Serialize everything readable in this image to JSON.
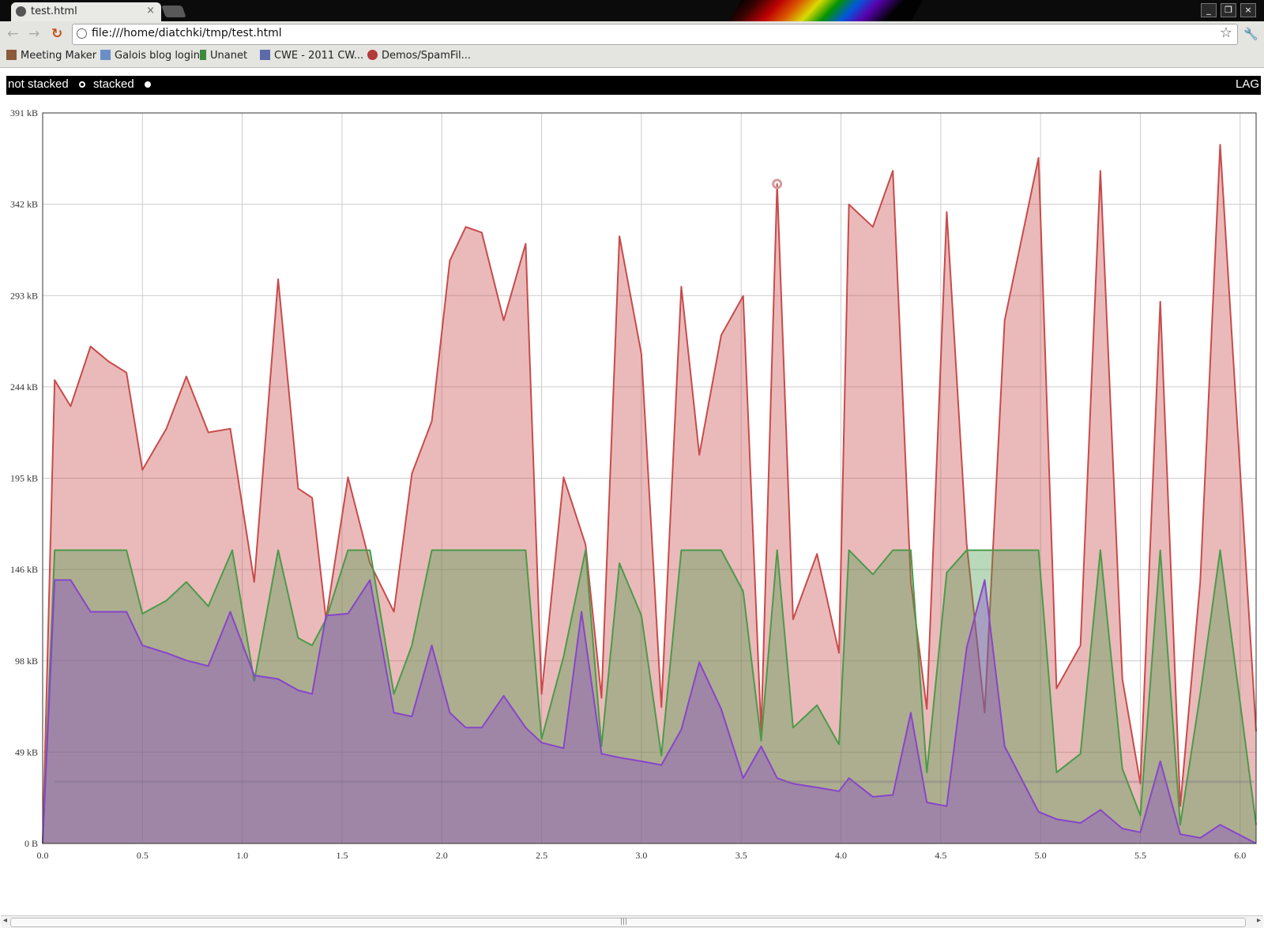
{
  "browser": {
    "tab_title": "test.html",
    "tab_close": "×",
    "address": "file:///home/diatchki/tmp/test.html",
    "window_buttons": [
      "_",
      "❐",
      "×"
    ],
    "nav_back": "←",
    "nav_forward": "→",
    "nav_reload": "↻",
    "star": "☆",
    "wrench": "🔧"
  },
  "bookmarks": [
    {
      "label": "Meeting Maker",
      "icon_color": "#8a5a3a"
    },
    {
      "label": "Galois blog login",
      "icon_color": "#6a8fc7"
    },
    {
      "label": "Unanet",
      "icon_color": "#3c8a3c"
    },
    {
      "label": "CWE - 2011 CW...",
      "icon_color": "#5b6aa8"
    },
    {
      "label": "Demos/SpamFil...",
      "icon_color": "#b33a3a"
    }
  ],
  "controls": {
    "options": [
      {
        "label": "not stacked",
        "selected": false
      },
      {
        "label": "stacked",
        "selected": true
      }
    ],
    "right_label": "LAG"
  },
  "colors": {
    "red": "#c94a4a",
    "green": "#4a9a4a",
    "purple": "#8844cc",
    "grid": "#cccccc"
  },
  "chart_data": {
    "type": "area",
    "stacked": true,
    "xlim": [
      0,
      6.08
    ],
    "ylim": [
      0,
      391
    ],
    "x_ticks": [
      "0.0",
      "0.5",
      "1.0",
      "1.5",
      "2.0",
      "2.5",
      "3.0",
      "3.5",
      "4.0",
      "4.5",
      "5.0",
      "5.5",
      "6.0"
    ],
    "y_ticks": [
      "0 B",
      "49 kB",
      "98 kB",
      "146 kB",
      "195 kB",
      "244 kB",
      "293 kB",
      "342 kB",
      "391 kB"
    ],
    "highlight_point": {
      "x": 3.68,
      "y": 353
    },
    "series": [
      {
        "color": "#c94a4a",
        "points": [
          [
            0,
            0
          ],
          [
            0.06,
            248
          ],
          [
            0.14,
            234
          ],
          [
            0.24,
            266
          ],
          [
            0.33,
            258
          ],
          [
            0.42,
            252
          ],
          [
            0.5,
            200
          ],
          [
            0.62,
            222
          ],
          [
            0.72,
            250
          ],
          [
            0.83,
            220
          ],
          [
            0.94,
            222
          ],
          [
            1.06,
            140
          ],
          [
            1.18,
            302
          ],
          [
            1.28,
            190
          ],
          [
            1.35,
            185
          ],
          [
            1.42,
            120
          ],
          [
            1.53,
            196
          ],
          [
            1.64,
            150
          ],
          [
            1.76,
            124
          ],
          [
            1.85,
            198
          ],
          [
            1.95,
            226
          ],
          [
            2.04,
            312
          ],
          [
            2.12,
            330
          ],
          [
            2.2,
            327
          ],
          [
            2.31,
            280
          ],
          [
            2.42,
            321
          ],
          [
            2.5,
            80
          ],
          [
            2.61,
            196
          ],
          [
            2.72,
            160
          ],
          [
            2.8,
            78
          ],
          [
            2.89,
            325
          ],
          [
            3.0,
            262
          ],
          [
            3.1,
            73
          ],
          [
            3.2,
            298
          ],
          [
            3.29,
            208
          ],
          [
            3.4,
            272
          ],
          [
            3.51,
            293
          ],
          [
            3.6,
            60
          ],
          [
            3.68,
            353
          ],
          [
            3.76,
            120
          ],
          [
            3.88,
            155
          ],
          [
            3.99,
            102
          ],
          [
            4.04,
            342
          ],
          [
            4.16,
            330
          ],
          [
            4.26,
            360
          ],
          [
            4.35,
            140
          ],
          [
            4.43,
            72
          ],
          [
            4.53,
            338
          ],
          [
            4.63,
            160
          ],
          [
            4.72,
            70
          ],
          [
            4.82,
            280
          ],
          [
            4.99,
            367
          ],
          [
            5.08,
            83
          ],
          [
            5.2,
            106
          ],
          [
            5.3,
            360
          ],
          [
            5.41,
            88
          ],
          [
            5.5,
            32
          ],
          [
            5.6,
            290
          ],
          [
            5.7,
            20
          ],
          [
            5.8,
            140
          ],
          [
            5.9,
            374
          ],
          [
            6.08,
            60
          ]
        ]
      },
      {
        "color": "#4a9a4a",
        "points": [
          [
            0,
            0
          ],
          [
            0.06,
            157
          ],
          [
            0.16,
            157
          ],
          [
            0.27,
            157
          ],
          [
            0.42,
            157
          ],
          [
            0.5,
            123
          ],
          [
            0.62,
            130
          ],
          [
            0.72,
            140
          ],
          [
            0.83,
            127
          ],
          [
            0.95,
            157
          ],
          [
            1.06,
            87
          ],
          [
            1.18,
            157
          ],
          [
            1.28,
            110
          ],
          [
            1.35,
            106
          ],
          [
            1.42,
            120
          ],
          [
            1.53,
            157
          ],
          [
            1.64,
            157
          ],
          [
            1.76,
            80
          ],
          [
            1.85,
            106
          ],
          [
            1.95,
            157
          ],
          [
            2.04,
            157
          ],
          [
            2.2,
            157
          ],
          [
            2.31,
            157
          ],
          [
            2.42,
            157
          ],
          [
            2.5,
            56
          ],
          [
            2.61,
            100
          ],
          [
            2.72,
            157
          ],
          [
            2.8,
            52
          ],
          [
            2.89,
            150
          ],
          [
            3.0,
            122
          ],
          [
            3.1,
            47
          ],
          [
            3.2,
            157
          ],
          [
            3.29,
            157
          ],
          [
            3.4,
            157
          ],
          [
            3.51,
            135
          ],
          [
            3.6,
            55
          ],
          [
            3.68,
            157
          ],
          [
            3.76,
            62
          ],
          [
            3.88,
            74
          ],
          [
            3.99,
            53
          ],
          [
            4.04,
            157
          ],
          [
            4.16,
            144
          ],
          [
            4.26,
            157
          ],
          [
            4.35,
            157
          ],
          [
            4.43,
            38
          ],
          [
            4.53,
            145
          ],
          [
            4.63,
            157
          ],
          [
            4.72,
            157
          ],
          [
            4.82,
            157
          ],
          [
            4.99,
            157
          ],
          [
            5.08,
            38
          ],
          [
            5.2,
            48
          ],
          [
            5.3,
            157
          ],
          [
            5.41,
            40
          ],
          [
            5.5,
            15
          ],
          [
            5.6,
            157
          ],
          [
            5.7,
            10
          ],
          [
            5.8,
            80
          ],
          [
            5.9,
            157
          ],
          [
            6.08,
            10
          ]
        ]
      },
      {
        "color": "#8844cc",
        "points": [
          [
            0,
            0
          ],
          [
            0.06,
            141
          ],
          [
            0.14,
            141
          ],
          [
            0.24,
            124
          ],
          [
            0.33,
            124
          ],
          [
            0.42,
            124
          ],
          [
            0.5,
            106
          ],
          [
            0.62,
            102
          ],
          [
            0.72,
            98
          ],
          [
            0.83,
            95
          ],
          [
            0.94,
            124
          ],
          [
            1.06,
            90
          ],
          [
            1.18,
            88
          ],
          [
            1.28,
            82
          ],
          [
            1.35,
            80
          ],
          [
            1.42,
            122
          ],
          [
            1.53,
            123
          ],
          [
            1.64,
            141
          ],
          [
            1.76,
            70
          ],
          [
            1.85,
            68
          ],
          [
            1.95,
            106
          ],
          [
            2.04,
            70
          ],
          [
            2.12,
            62
          ],
          [
            2.2,
            62
          ],
          [
            2.31,
            79
          ],
          [
            2.42,
            62
          ],
          [
            2.5,
            54
          ],
          [
            2.61,
            51
          ],
          [
            2.7,
            124
          ],
          [
            2.8,
            48
          ],
          [
            2.89,
            46
          ],
          [
            3.0,
            44
          ],
          [
            3.1,
            42
          ],
          [
            3.2,
            61
          ],
          [
            3.29,
            97
          ],
          [
            3.4,
            72
          ],
          [
            3.51,
            35
          ],
          [
            3.6,
            52
          ],
          [
            3.68,
            35
          ],
          [
            3.76,
            32
          ],
          [
            3.88,
            30
          ],
          [
            3.99,
            28
          ],
          [
            4.04,
            35
          ],
          [
            4.16,
            25
          ],
          [
            4.26,
            26
          ],
          [
            4.35,
            70
          ],
          [
            4.43,
            22
          ],
          [
            4.53,
            20
          ],
          [
            4.63,
            105
          ],
          [
            4.72,
            141
          ],
          [
            4.82,
            52
          ],
          [
            4.99,
            17
          ],
          [
            5.08,
            13
          ],
          [
            5.2,
            11
          ],
          [
            5.3,
            18
          ],
          [
            5.41,
            8
          ],
          [
            5.5,
            6
          ],
          [
            5.6,
            44
          ],
          [
            5.7,
            5
          ],
          [
            5.8,
            3
          ],
          [
            5.9,
            10
          ],
          [
            6.08,
            0
          ]
        ]
      }
    ]
  }
}
